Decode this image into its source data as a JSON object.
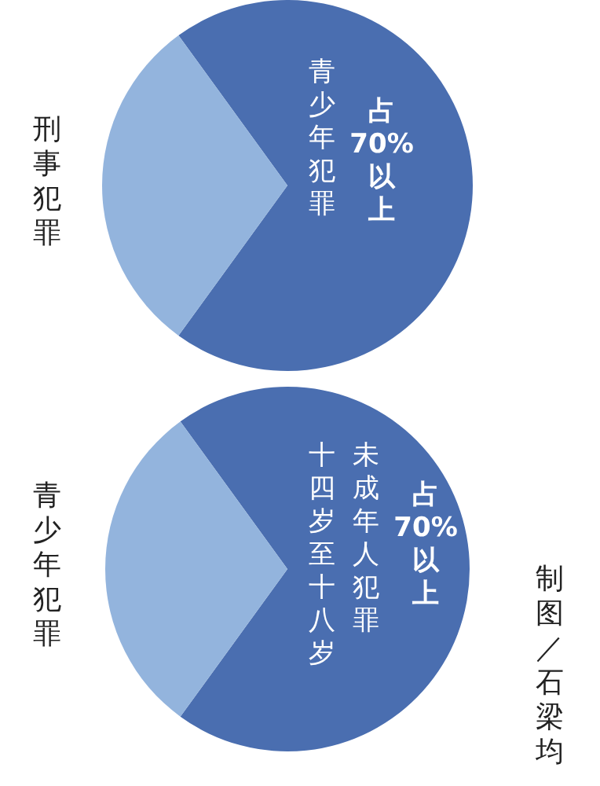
{
  "chart_data": [
    {
      "type": "pie",
      "title": "刑事犯罪",
      "categories": [
        "青少年犯罪",
        null
      ],
      "values": [
        70,
        30
      ],
      "colors": [
        "#4a6eb0",
        "#93b4dd"
      ],
      "value_labels": [
        "占70%以上",
        null
      ]
    },
    {
      "type": "pie",
      "title": "青少年犯罪",
      "categories": [
        "未成年人犯罪",
        null
      ],
      "values": [
        70,
        30
      ],
      "colors": [
        "#4a6eb0",
        "#93b4dd"
      ],
      "value_labels": [
        "占70%以上",
        null
      ],
      "annotations": [
        "十四岁至十八岁",
        "制图／石梁均"
      ]
    }
  ]
}
